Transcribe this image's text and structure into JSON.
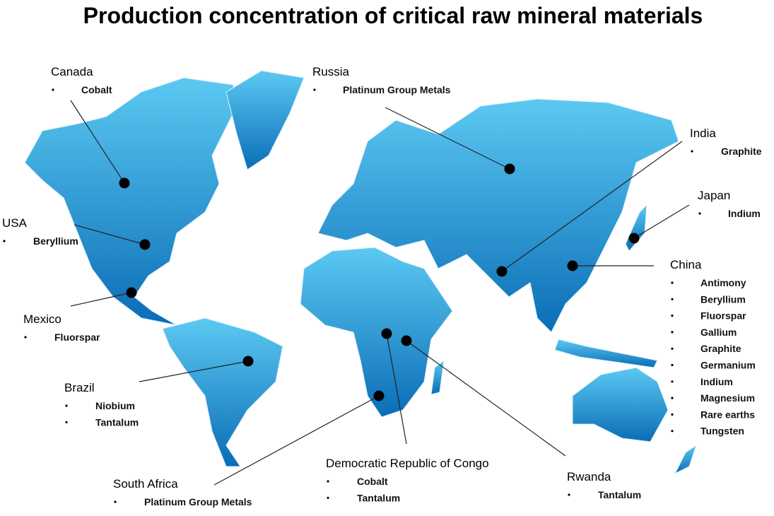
{
  "title": "Production concentration of critical raw mineral materials",
  "countries": [
    {
      "name": "Canada",
      "minerals": [
        "Cobalt"
      ]
    },
    {
      "name": "Russia",
      "minerals": [
        "Platinum Group Metals"
      ]
    },
    {
      "name": "India",
      "minerals": [
        "Graphite"
      ]
    },
    {
      "name": "Japan",
      "minerals": [
        "Indium"
      ]
    },
    {
      "name": "USA",
      "minerals": [
        "Beryllium"
      ]
    },
    {
      "name": "China",
      "minerals": [
        "Antimony",
        "Beryllium",
        "Fluorspar",
        "Gallium",
        "Graphite",
        "Germanium",
        "Indium",
        "Magnesium",
        "Rare earths",
        "Tungsten"
      ]
    },
    {
      "name": "Mexico",
      "minerals": [
        "Fluorspar"
      ]
    },
    {
      "name": "Brazil",
      "minerals": [
        "Niobium",
        "Tantalum"
      ]
    },
    {
      "name": "Democratic Republic of Congo",
      "minerals": [
        "Cobalt",
        "Tantalum"
      ]
    },
    {
      "name": "South Africa",
      "minerals": [
        "Platinum Group Metals"
      ]
    },
    {
      "name": "Rwanda",
      "minerals": [
        "Tantalum"
      ]
    }
  ]
}
